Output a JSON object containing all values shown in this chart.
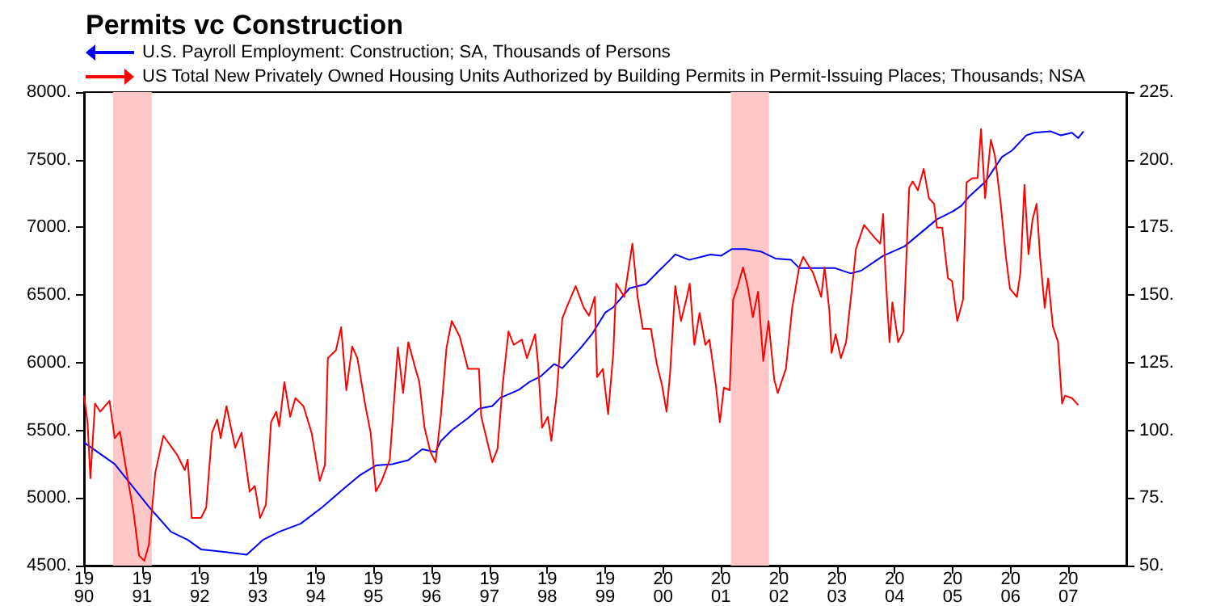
{
  "chart_data": {
    "type": "line",
    "title": "Permits vc Construction",
    "xlim": [
      1990,
      2008
    ],
    "xticks": [
      1990,
      1991,
      1992,
      1993,
      1994,
      1995,
      1996,
      1997,
      1998,
      1999,
      2000,
      2001,
      2002,
      2003,
      2004,
      2005,
      2006,
      2007
    ],
    "ylim": [
      4500,
      8000
    ],
    "yticks": [
      {
        "value": 4500,
        "label": "4500."
      },
      {
        "value": 5000,
        "label": "5000."
      },
      {
        "value": 5500,
        "label": "5500."
      },
      {
        "value": 6000,
        "label": "6000."
      },
      {
        "value": 6500,
        "label": "6500."
      },
      {
        "value": 7000,
        "label": "7000."
      },
      {
        "value": 7500,
        "label": "7500."
      },
      {
        "value": 8000,
        "label": "8000."
      }
    ],
    "y2lim": [
      50,
      225
    ],
    "y2ticks": [
      {
        "value": 50,
        "label": "50."
      },
      {
        "value": 75,
        "label": "75."
      },
      {
        "value": 100,
        "label": "100."
      },
      {
        "value": 125,
        "label": "125."
      },
      {
        "value": 150,
        "label": "150."
      },
      {
        "value": 175,
        "label": "175."
      },
      {
        "value": 200,
        "label": "200."
      },
      {
        "value": 225,
        "label": "225."
      }
    ],
    "grid": false,
    "legend": "top left",
    "marker": "none",
    "line_style": "solid",
    "bands": [
      {
        "axis": "x",
        "from": 1990.5,
        "to": 1991.17,
        "color": "#ffc8c8"
      },
      {
        "axis": "x",
        "from": 2001.17,
        "to": 2001.83,
        "color": "#ffc8c8"
      }
    ],
    "series": [
      {
        "name": "U.S. Payroll Employment: Construction; SA, Thousands of Persons",
        "color": "#0000ff",
        "axis": "y",
        "x": [
          1990.0,
          1990.53,
          1991.13,
          1991.5,
          1991.79,
          1992.02,
          1992.44,
          1992.81,
          1993.09,
          1993.37,
          1993.74,
          1994.11,
          1994.49,
          1994.77,
          1995.04,
          1995.32,
          1995.6,
          1995.84,
          1996.07,
          1996.16,
          1996.35,
          1996.63,
          1996.82,
          1997.05,
          1997.19,
          1997.51,
          1997.7,
          1997.89,
          1998.12,
          1998.26,
          1998.58,
          1998.77,
          1999.0,
          1999.14,
          1999.42,
          1999.7,
          1999.93,
          2000.12,
          2000.21,
          2000.45,
          2000.82,
          2001.0,
          2001.19,
          2001.42,
          2001.7,
          2001.94,
          2002.21,
          2002.35,
          2002.68,
          2002.96,
          2003.24,
          2003.42,
          2003.8,
          2004.17,
          2004.45,
          2004.73,
          2005.01,
          2005.15,
          2005.29,
          2005.57,
          2005.85,
          2006.03,
          2006.27,
          2006.41,
          2006.69,
          2006.87,
          2007.06,
          2007.17,
          2007.26
        ],
        "values": [
          5410,
          5250,
          4930,
          4750,
          4690,
          4620,
          4600,
          4580,
          4690,
          4750,
          4810,
          4930,
          5070,
          5170,
          5240,
          5250,
          5280,
          5360,
          5340,
          5420,
          5500,
          5590,
          5660,
          5680,
          5740,
          5800,
          5860,
          5900,
          5990,
          5960,
          6110,
          6210,
          6370,
          6410,
          6550,
          6580,
          6680,
          6760,
          6800,
          6760,
          6800,
          6790,
          6840,
          6840,
          6820,
          6770,
          6760,
          6700,
          6700,
          6700,
          6660,
          6680,
          6790,
          6860,
          6960,
          7060,
          7120,
          7160,
          7230,
          7340,
          7520,
          7570,
          7680,
          7700,
          7710,
          7680,
          7700,
          7660,
          7710
        ]
      },
      {
        "name": "US Total New Privately Owned Housing Units Authorized by Building Permits in Permit-Issuing Places; Thousands; NSA",
        "color": "#ff0000",
        "axis": "y2",
        "x": [
          1990.0,
          1990.06,
          1990.11,
          1990.19,
          1990.28,
          1990.44,
          1990.53,
          1990.62,
          1990.76,
          1990.85,
          1990.95,
          1991.04,
          1991.12,
          1991.23,
          1991.37,
          1991.6,
          1991.74,
          1991.79,
          1991.86,
          1992.02,
          1992.11,
          1992.21,
          1992.3,
          1992.36,
          1992.46,
          1992.61,
          1992.72,
          1992.86,
          1992.95,
          1993.04,
          1993.14,
          1993.23,
          1993.32,
          1993.37,
          1993.46,
          1993.56,
          1993.65,
          1993.79,
          1993.93,
          1994.07,
          1994.16,
          1994.21,
          1994.35,
          1994.44,
          1994.53,
          1994.63,
          1994.72,
          1994.86,
          1994.95,
          1995.04,
          1995.14,
          1995.28,
          1995.42,
          1995.51,
          1995.6,
          1995.7,
          1995.79,
          1995.88,
          1995.98,
          1996.07,
          1996.16,
          1996.26,
          1996.35,
          1996.49,
          1996.63,
          1996.82,
          1996.86,
          1997.05,
          1997.14,
          1997.23,
          1997.33,
          1997.42,
          1997.56,
          1997.65,
          1997.79,
          1997.84,
          1997.91,
          1998.01,
          1998.07,
          1998.16,
          1998.26,
          1998.35,
          1998.49,
          1998.63,
          1998.72,
          1998.82,
          1998.86,
          1998.96,
          1999.05,
          1999.14,
          1999.19,
          1999.33,
          1999.47,
          1999.56,
          1999.65,
          1999.79,
          1999.89,
          1999.98,
          2000.06,
          2000.12,
          2000.21,
          2000.31,
          2000.4,
          2000.46,
          2000.54,
          2000.63,
          2000.73,
          2000.8,
          2000.91,
          2000.98,
          2001.05,
          2001.15,
          2001.21,
          2001.29,
          2001.38,
          2001.46,
          2001.55,
          2001.64,
          2001.73,
          2001.82,
          2001.92,
          2001.98,
          2002.12,
          2002.23,
          2002.35,
          2002.42,
          2002.59,
          2002.73,
          2002.79,
          2002.87,
          2002.91,
          2002.98,
          2003.07,
          2003.16,
          2003.29,
          2003.33,
          2003.47,
          2003.66,
          2003.75,
          2003.8,
          2003.84,
          2003.91,
          2003.96,
          2004.06,
          2004.15,
          2004.25,
          2004.31,
          2004.4,
          2004.5,
          2004.59,
          2004.68,
          2004.73,
          2004.82,
          2004.92,
          2004.99,
          2005.08,
          2005.18,
          2005.24,
          2005.34,
          2005.43,
          2005.49,
          2005.56,
          2005.66,
          2005.73,
          2005.83,
          2005.92,
          2005.99,
          2006.11,
          2006.17,
          2006.24,
          2006.31,
          2006.38,
          2006.45,
          2006.51,
          2006.59,
          2006.65,
          2006.73,
          2006.82,
          2006.89,
          2006.94,
          2007.06,
          2007.17
        ],
        "values": [
          112.8,
          103,
          82.3,
          109.9,
          106.9,
          110.9,
          97.1,
          99.5,
          81.3,
          70.5,
          53.7,
          51.8,
          57.7,
          84.3,
          98,
          91.2,
          85.3,
          89.2,
          67.6,
          67.6,
          71.5,
          99.1,
          104,
          97.1,
          108.9,
          93.6,
          99.1,
          77.4,
          79.4,
          67.6,
          72.5,
          103,
          106.9,
          101.4,
          117.8,
          105,
          111.9,
          108.9,
          99.1,
          81.3,
          87.2,
          126.7,
          129.6,
          138.1,
          114.8,
          131,
          126.7,
          108.9,
          99.1,
          77.4,
          81.3,
          89.2,
          130.6,
          113.8,
          132.6,
          124.6,
          117.8,
          101,
          92.1,
          88.2,
          105,
          130.6,
          140.4,
          134.5,
          122.7,
          122.7,
          105,
          88.2,
          93.1,
          116.8,
          136.5,
          131.6,
          133.5,
          126.7,
          135.5,
          124.6,
          101,
          105,
          96.1,
          112.8,
          141.4,
          146.3,
          153.3,
          145.3,
          142.4,
          149.3,
          119.7,
          122.7,
          106,
          128.6,
          154.2,
          149.3,
          169,
          149.3,
          137.5,
          137.5,
          124.6,
          116.8,
          106.9,
          120.8,
          153.3,
          140.4,
          148.3,
          154.2,
          131.6,
          143.4,
          131.6,
          133.5,
          116.8,
          103,
          115.8,
          114.8,
          148.3,
          153.3,
          160.2,
          153.3,
          141.8,
          151.2,
          125.6,
          140.4,
          118.7,
          113.8,
          122.7,
          145.3,
          160.2,
          164.1,
          158.2,
          149.3,
          160.2,
          144.4,
          128.6,
          135.5,
          126.7,
          132.6,
          158.2,
          167,
          175.9,
          171,
          169,
          179.9,
          158.2,
          132.6,
          147.3,
          132.6,
          136.5,
          189.7,
          192,
          188.7,
          196.6,
          185.8,
          183.7,
          174.9,
          174.9,
          156.2,
          155.2,
          140.4,
          148.3,
          191.6,
          193.2,
          193.2,
          211.3,
          185.8,
          207.4,
          201.5,
          183.7,
          164.1,
          152.3,
          149.3,
          158.2,
          190.7,
          165.1,
          177.9,
          183.7,
          164.1,
          145.3,
          156.2,
          138.5,
          132.6,
          109.9,
          112.8,
          111.9,
          109.3
        ]
      }
    ]
  }
}
